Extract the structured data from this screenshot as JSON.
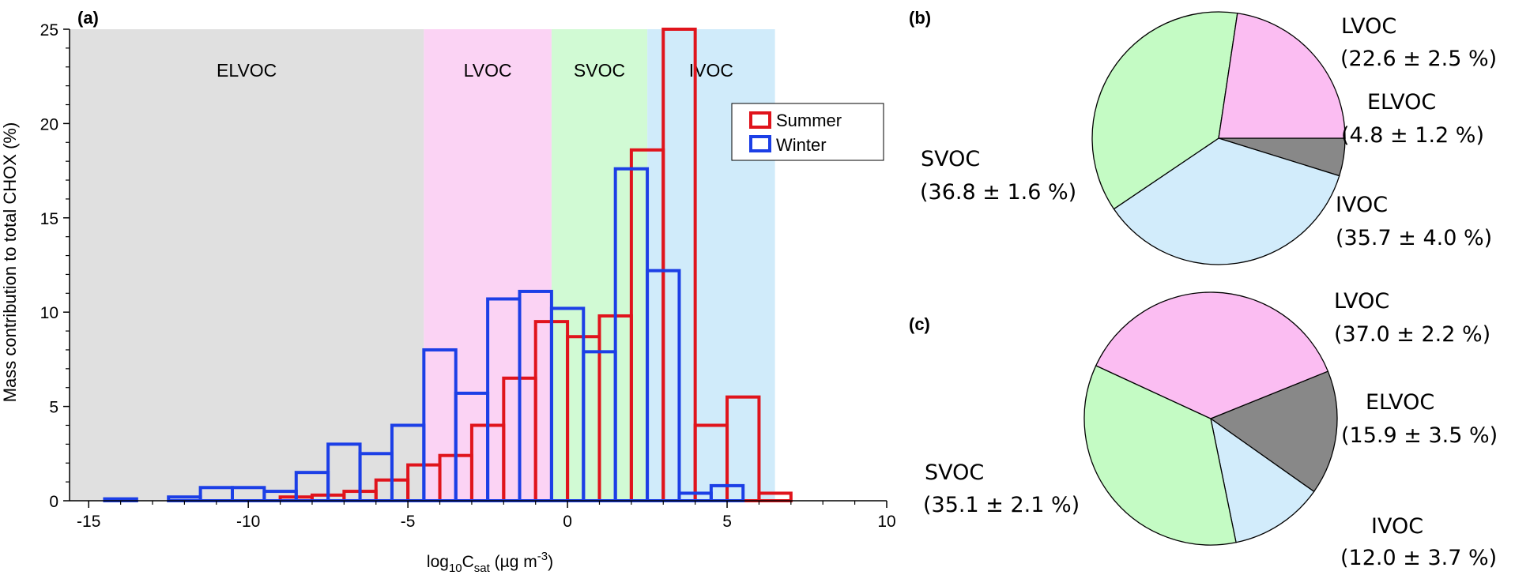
{
  "chart_data": [
    {
      "panel": "(a)",
      "type": "histogram",
      "xlabel": "log10Csat (µg m-3)",
      "xlabel_parts": {
        "main": "log",
        "sub1": "10",
        "mid": "C",
        "sub2": "sat",
        "open": " (µg m",
        "sup": "-3",
        "close": ")"
      },
      "ylabel": "Mass contribution to total CHOX (%)",
      "xlim": [
        -15.6,
        10
      ],
      "ylim": [
        0,
        25
      ],
      "xticks": [
        -15,
        -10,
        -5,
        0,
        5,
        10
      ],
      "yticks": [
        0,
        5,
        10,
        15,
        20,
        25
      ],
      "grid": false,
      "legend_position": "top-right",
      "regions": [
        {
          "name": "ELVOC",
          "x0": -15.6,
          "x1": -4.5,
          "color": "#e0e0e0"
        },
        {
          "name": "LVOC",
          "x0": -4.5,
          "x1": -0.5,
          "color": "#fbd3f4"
        },
        {
          "name": "SVOC",
          "x0": -0.5,
          "x1": 2.5,
          "color": "#d1fad4"
        },
        {
          "name": "IVOC",
          "x0": 2.5,
          "x1": 6.5,
          "color": "#d0ebfa"
        }
      ],
      "series": [
        {
          "name": "Summer",
          "color": "#e0141c",
          "offset": 0.5,
          "bins": [
            -14,
            -13,
            -12,
            -11,
            -10,
            -9,
            -8,
            -7,
            -6,
            -5,
            -4,
            -3,
            -2,
            -1,
            0,
            1,
            2,
            3,
            4,
            5,
            6,
            7,
            8,
            9
          ],
          "values": [
            0,
            0,
            0,
            0,
            0,
            0.2,
            0.3,
            0.5,
            1.1,
            1.9,
            2.4,
            4.0,
            6.5,
            9.5,
            8.7,
            9.8,
            18.6,
            25.0,
            4.0,
            5.5,
            0.4,
            0,
            0,
            0
          ]
        },
        {
          "name": "Winter",
          "color": "#1c3fe6",
          "offset": 0,
          "bins": [
            -15,
            -14,
            -13,
            -12,
            -11,
            -10,
            -9,
            -8,
            -7,
            -6,
            -5,
            -4,
            -3,
            -2,
            -1,
            0,
            1,
            2,
            3,
            4,
            5,
            6,
            7,
            8,
            9
          ],
          "values": [
            0,
            0.1,
            0,
            0.2,
            0.7,
            0.7,
            0.5,
            1.5,
            3.0,
            2.5,
            4.0,
            8.0,
            5.7,
            10.7,
            11.1,
            10.2,
            7.9,
            17.6,
            12.2,
            0.4,
            0.8,
            0,
            0,
            0,
            0
          ]
        }
      ]
    },
    {
      "panel": "(b)",
      "type": "pie",
      "slices": [
        {
          "name": "ELVOC",
          "value": 4.8,
          "label": "(4.8 ± 1.2 %)",
          "color": "#888888"
        },
        {
          "name": "LVOC",
          "value": 22.6,
          "label": "(22.6 ± 2.5 %)",
          "color": "#fbbdf2"
        },
        {
          "name": "SVOC",
          "value": 36.8,
          "label": "(36.8 ± 1.6 %)",
          "color": "#c4fbc4"
        },
        {
          "name": "IVOC",
          "value": 35.7,
          "label": "(35.7 ± 4.0 %)",
          "color": "#d2ecfb"
        }
      ]
    },
    {
      "panel": "(c)",
      "type": "pie",
      "slices": [
        {
          "name": "ELVOC",
          "value": 15.9,
          "label": "(15.9 ± 3.5 %)",
          "color": "#888888"
        },
        {
          "name": "LVOC",
          "value": 37.0,
          "label": "(37.0 ± 2.2 %)",
          "color": "#fbbdf2"
        },
        {
          "name": "SVOC",
          "value": 35.1,
          "label": "(35.1 ± 2.1 %)",
          "color": "#c4fbc4"
        },
        {
          "name": "IVOC",
          "value": 12.0,
          "label": "(12.0 ± 3.7 %)",
          "color": "#d2ecfb"
        }
      ]
    }
  ]
}
